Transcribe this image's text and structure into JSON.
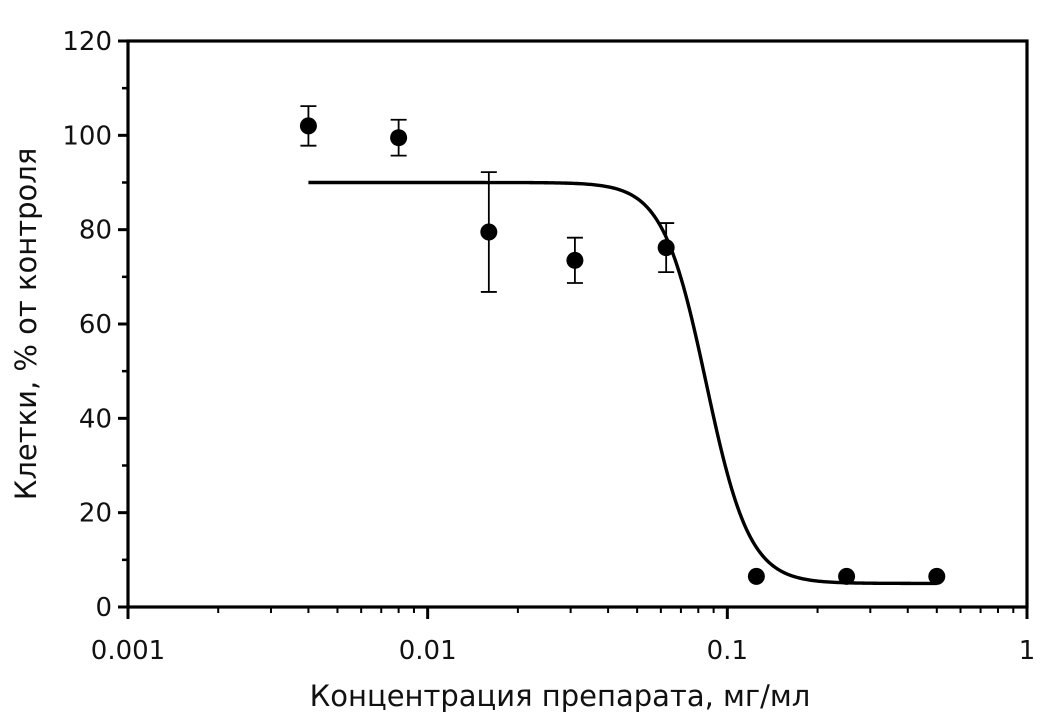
{
  "chart_data": {
    "type": "scatter",
    "title": "",
    "xlabel": "Концентрация препарата, мг/мл",
    "ylabel": "Клетки, % от контроля",
    "xscale": "log",
    "xlim": [
      0.001,
      1
    ],
    "ylim": [
      0,
      120
    ],
    "xticks": [
      0.001,
      0.01,
      0.1,
      1
    ],
    "xtick_labels": [
      "0.001",
      "0.01",
      "0.1",
      "1"
    ],
    "yticks": [
      0,
      20,
      40,
      60,
      80,
      100,
      120
    ],
    "ytick_labels": [
      "0",
      "20",
      "40",
      "60",
      "80",
      "100",
      "120"
    ],
    "grid": false,
    "legend": "none",
    "points": [
      {
        "x": 0.004,
        "y": 102,
        "err_low": 4.2,
        "err_high": 4.2
      },
      {
        "x": 0.008,
        "y": 99.5,
        "err_low": 3.8,
        "err_high": 3.8
      },
      {
        "x": 0.016,
        "y": 79.5,
        "err_low": 12.7,
        "err_high": 12.7
      },
      {
        "x": 0.031,
        "y": 73.5,
        "err_low": 4.8,
        "err_high": 4.8
      },
      {
        "x": 0.0625,
        "y": 76.2,
        "err_low": 5.2,
        "err_high": 5.2
      },
      {
        "x": 0.125,
        "y": 6.5
      },
      {
        "x": 0.25,
        "y": 6.5
      },
      {
        "x": 0.5,
        "y": 6.5
      }
    ],
    "fit_curve": {
      "model": "sigmoid",
      "top": 90,
      "bottom": 5,
      "ec50": 0.085,
      "hill": 6,
      "x_range": [
        0.004,
        0.5
      ]
    }
  }
}
